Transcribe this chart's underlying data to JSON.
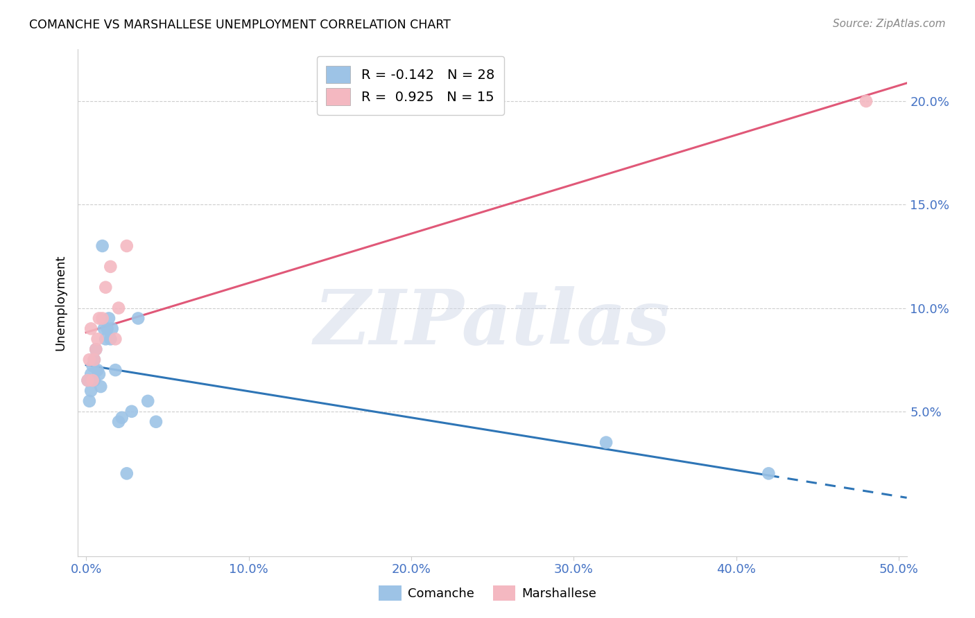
{
  "title": "COMANCHE VS MARSHALLESE UNEMPLOYMENT CORRELATION CHART",
  "source": "Source: ZipAtlas.com",
  "tick_color": "#4472C4",
  "ylabel": "Unemployment",
  "watermark": "ZIPatlas",
  "comanche": {
    "label": "Comanche",
    "R": -0.142,
    "N": 28,
    "color_scatter": "#9DC3E6",
    "color_line": "#2E75B6",
    "x": [
      0.001,
      0.002,
      0.003,
      0.003,
      0.004,
      0.005,
      0.005,
      0.006,
      0.007,
      0.008,
      0.009,
      0.01,
      0.011,
      0.012,
      0.013,
      0.014,
      0.015,
      0.016,
      0.018,
      0.02,
      0.022,
      0.025,
      0.028,
      0.032,
      0.038,
      0.043,
      0.32,
      0.42
    ],
    "y": [
      0.065,
      0.055,
      0.06,
      0.068,
      0.072,
      0.065,
      0.075,
      0.08,
      0.07,
      0.068,
      0.062,
      0.13,
      0.09,
      0.085,
      0.09,
      0.095,
      0.085,
      0.09,
      0.07,
      0.045,
      0.047,
      0.02,
      0.05,
      0.095,
      0.055,
      0.045,
      0.035,
      0.02
    ]
  },
  "marshallese": {
    "label": "Marshallese",
    "R": 0.925,
    "N": 15,
    "color_scatter": "#F4B8C1",
    "color_line": "#E05878",
    "x": [
      0.001,
      0.002,
      0.003,
      0.004,
      0.005,
      0.006,
      0.007,
      0.008,
      0.01,
      0.012,
      0.015,
      0.018,
      0.02,
      0.025,
      0.48
    ],
    "y": [
      0.065,
      0.075,
      0.09,
      0.065,
      0.075,
      0.08,
      0.085,
      0.095,
      0.095,
      0.11,
      0.12,
      0.085,
      0.1,
      0.13,
      0.2
    ]
  },
  "xlim": [
    -0.005,
    0.505
  ],
  "ylim": [
    -0.02,
    0.225
  ],
  "x_ticks": [
    0.0,
    0.1,
    0.2,
    0.3,
    0.4,
    0.5
  ],
  "x_tick_labels": [
    "0.0%",
    "10.0%",
    "20.0%",
    "30.0%",
    "40.0%",
    "50.0%"
  ],
  "y_ticks": [
    0.05,
    0.1,
    0.15,
    0.2
  ],
  "y_tick_labels": [
    "5.0%",
    "10.0%",
    "15.0%",
    "20.0%"
  ],
  "background_color": "#FFFFFF",
  "grid_color": "#C8C8C8",
  "com_line_solid_end": 0.42,
  "com_line_dash_start": 0.42,
  "com_line_dash_end": 0.505
}
